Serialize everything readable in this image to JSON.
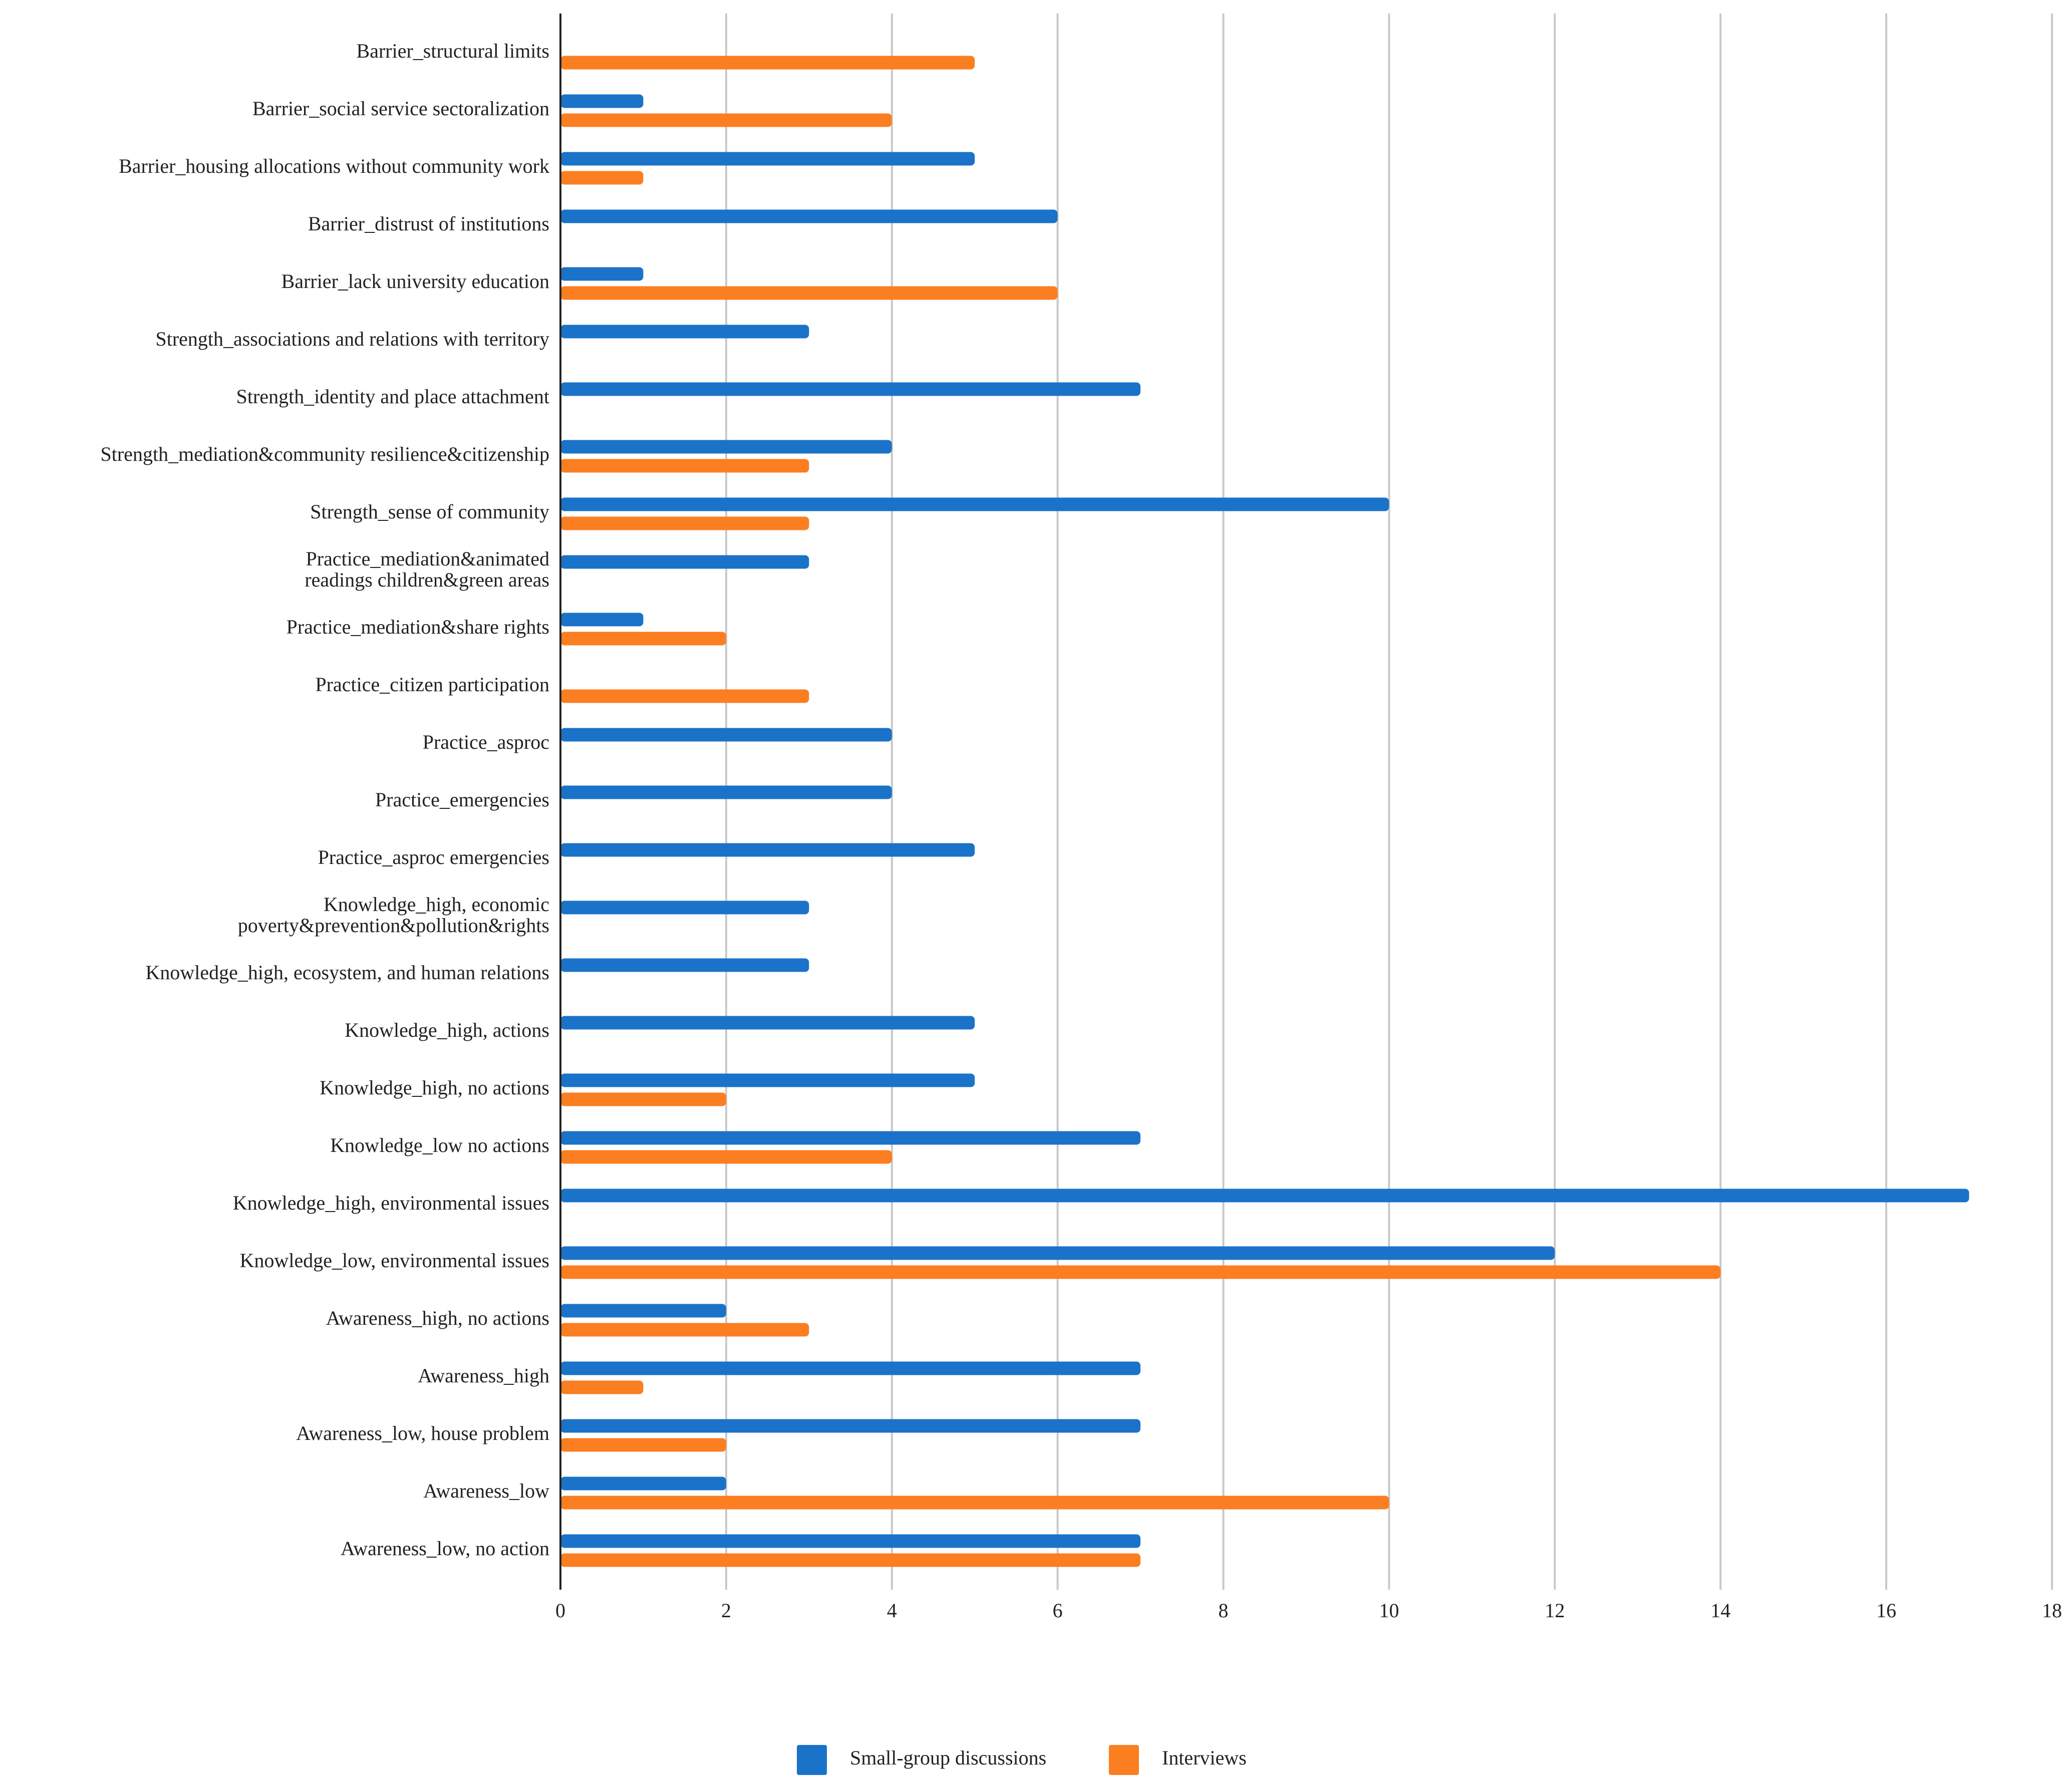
{
  "chart_data": {
    "type": "bar",
    "orientation": "horizontal",
    "categories": [
      "Barrier_structural limits",
      "Barrier_social service sectoralization",
      "Barrier_housing allocations without community work",
      "Barrier_distrust of institutions",
      "Barrier_lack university education",
      "Strength_associations and relations with territory",
      "Strength_identity and place attachment",
      "Strength_mediation&community resilience&citizenship",
      "Strength_sense of community",
      "Practice_mediation&animated readings children&green areas",
      "Practice_mediation&share rights",
      "Practice_citizen participation",
      "Practice_asproc",
      "Practice_emergencies",
      "Practice_asproc emergencies",
      "Knowledge_high, economic poverty&prevention&pollution&rights",
      "Knowledge_high, ecosystem, and human relations",
      "Knowledge_high, actions",
      "Knowledge_high, no actions",
      "Knowledge_low no actions",
      "Knowledge_high, environmental issues",
      "Knowledge_low, environmental issues",
      "Awareness_high, no actions",
      "Awareness_high",
      "Awareness_low, house problem",
      "Awareness_low",
      "Awareness_low, no action"
    ],
    "series": [
      {
        "name": "Small-group discussions",
        "color": "#1a73c8",
        "values": [
          null,
          1,
          5,
          6,
          1,
          3,
          7,
          4,
          10,
          3,
          1,
          null,
          4,
          4,
          5,
          3,
          3,
          5,
          5,
          7,
          17,
          12,
          2,
          7,
          7,
          2,
          7
        ]
      },
      {
        "name": "Interviews",
        "color": "#fb7e21",
        "values": [
          5,
          4,
          1,
          null,
          6,
          null,
          null,
          3,
          3,
          null,
          2,
          3,
          null,
          null,
          null,
          null,
          null,
          null,
          2,
          4,
          null,
          14,
          3,
          1,
          2,
          10,
          7
        ]
      }
    ],
    "xlim": [
      0,
      18
    ],
    "xticks": [
      0,
      2,
      4,
      6,
      8,
      10,
      12,
      14,
      16,
      18
    ],
    "grid": true
  }
}
